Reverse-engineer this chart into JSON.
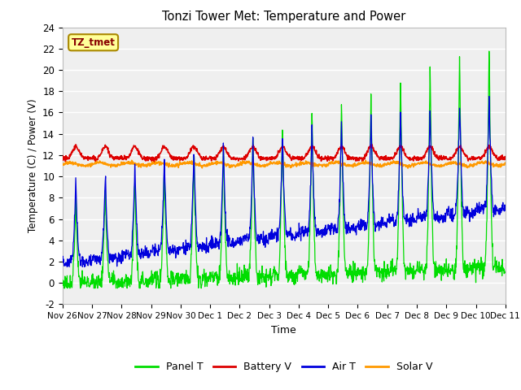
{
  "title": "Tonzi Tower Met: Temperature and Power",
  "xlabel": "Time",
  "ylabel": "Temperature (C) / Power (V)",
  "ylim": [
    -2,
    24
  ],
  "yticks": [
    -2,
    0,
    2,
    4,
    6,
    8,
    10,
    12,
    14,
    16,
    18,
    20,
    22,
    24
  ],
  "x_tick_labels": [
    "Nov 26",
    "Nov 27",
    "Nov 28",
    "Nov 29",
    "Nov 30",
    "Dec 1",
    "Dec 2",
    "Dec 3",
    "Dec 4",
    "Dec 5",
    "Dec 6",
    "Dec 7",
    "Dec 8",
    "Dec 9",
    "Dec 10",
    "Dec 11"
  ],
  "annotation_text": "TZ_tmet",
  "annotation_box_color": "#ffff99",
  "annotation_text_color": "#880000",
  "colors": {
    "panel_t": "#00dd00",
    "battery_v": "#dd0000",
    "air_t": "#0000dd",
    "solar_v": "#ff9900"
  },
  "legend_labels": [
    "Panel T",
    "Battery V",
    "Air T",
    "Solar V"
  ],
  "plot_bg_color": "#efefef",
  "grid_color": "#ffffff",
  "num_days": 15,
  "points_per_day": 96
}
